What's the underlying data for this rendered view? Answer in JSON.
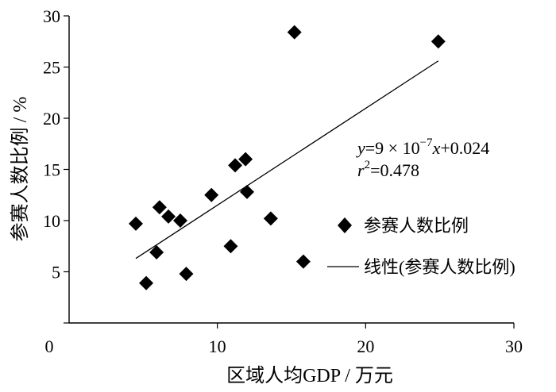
{
  "chart_data": {
    "type": "scatter",
    "xlabel": "区域人均GDP / 万元",
    "ylabel": "参赛人数比例 / %",
    "xlim": [
      0,
      30
    ],
    "ylim": [
      0,
      30
    ],
    "x_ticks": [
      "0",
      "10",
      "20",
      "30"
    ],
    "y_ticks": [
      "5",
      "10",
      "15",
      "20",
      "25",
      "30"
    ],
    "grid": false,
    "legend_position": "right",
    "series": [
      {
        "name": "参赛人数比例",
        "marker": "diamond",
        "color": "#000000",
        "points": [
          {
            "x": 4.5,
            "y": 9.7
          },
          {
            "x": 5.2,
            "y": 3.9
          },
          {
            "x": 5.9,
            "y": 6.9
          },
          {
            "x": 6.1,
            "y": 11.3
          },
          {
            "x": 6.7,
            "y": 10.4
          },
          {
            "x": 7.5,
            "y": 10.0
          },
          {
            "x": 7.9,
            "y": 4.8
          },
          {
            "x": 9.6,
            "y": 12.5
          },
          {
            "x": 10.9,
            "y": 7.5
          },
          {
            "x": 11.2,
            "y": 15.4
          },
          {
            "x": 11.9,
            "y": 16.0
          },
          {
            "x": 12.0,
            "y": 12.8
          },
          {
            "x": 13.6,
            "y": 10.2
          },
          {
            "x": 15.2,
            "y": 28.4
          },
          {
            "x": 15.8,
            "y": 6.0
          },
          {
            "x": 24.9,
            "y": 27.5
          }
        ]
      },
      {
        "name": "线性(参赛人数比例)",
        "type": "line",
        "color": "#000000",
        "x": [
          4.5,
          24.9
        ],
        "y": [
          6.3,
          25.6
        ]
      }
    ],
    "annotation": {
      "equation_parts": {
        "y": "y",
        "eq_start": "=9 × 10",
        "exponent": "−7",
        "x": "x",
        "eq_end": "+0.024",
        "r": "r",
        "r_exp": "2",
        "r_val": "=0.478"
      }
    }
  }
}
